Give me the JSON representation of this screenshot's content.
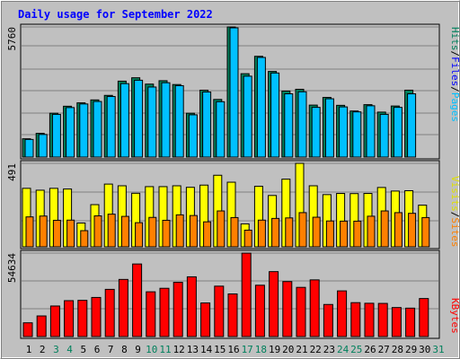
{
  "chart_data": {
    "type": "bar",
    "title": "Daily usage for September 2022",
    "days": [
      "1",
      "2",
      "3",
      "4",
      "5",
      "6",
      "7",
      "8",
      "9",
      "10",
      "11",
      "12",
      "13",
      "14",
      "15",
      "16",
      "17",
      "18",
      "19",
      "20",
      "21",
      "22",
      "23",
      "24",
      "25",
      "26",
      "27",
      "28",
      "29",
      "30",
      "31"
    ],
    "weekend_days": [
      "3",
      "4",
      "10",
      "11",
      "17",
      "18",
      "24",
      "25",
      "31"
    ],
    "panels": [
      {
        "id": "hits",
        "max_label": "5760",
        "ymax": 5760,
        "legend": [
          "Pages",
          "Files",
          "Hits"
        ],
        "series": [
          {
            "name": "Hits",
            "values": [
              810,
              1050,
              1940,
              2250,
              2400,
              2530,
              2730,
              3360,
              3510,
              3230,
              3380,
              3210,
              1940,
              2960,
              2550,
              5760,
              3690,
              4460,
              3790,
              2920,
              3000,
              2300,
              2640,
              2290,
              2040,
              2320,
              1990,
              2260,
              2960,
              null,
              null
            ]
          },
          {
            "name": "Files",
            "values": [
              780,
              1000,
              1890,
              2190,
              2350,
              2460,
              2680,
              3250,
              3400,
              3100,
              3290,
              3160,
              1870,
              2880,
              2450,
              5720,
              3580,
              4410,
              3720,
              2800,
              2890,
              2200,
              2580,
              2220,
              2000,
              2270,
              1890,
              2200,
              2800,
              null,
              null
            ]
          },
          {
            "name": "Pages",
            "values": [
              null,
              null,
              null,
              null,
              null,
              null,
              null,
              null,
              null,
              null,
              null,
              null,
              null,
              null,
              null,
              null,
              null,
              null,
              null,
              null,
              null,
              null,
              null,
              null,
              null,
              null,
              null,
              null,
              null,
              null,
              null
            ]
          }
        ]
      },
      {
        "id": "visits",
        "max_label": "491",
        "ymax": 491,
        "legend": [
          "Sites",
          "Visits"
        ],
        "series": [
          {
            "name": "Visits",
            "values": [
              344,
              333,
              344,
              340,
              140,
              248,
              369,
              359,
              315,
              354,
              354,
              359,
              350,
              363,
              421,
              380,
              135,
              356,
              302,
              398,
              491,
              359,
              307,
              314,
              313,
              314,
              349,
              328,
              330,
              245,
              null
            ]
          },
          {
            "name": "Sites",
            "values": [
              176,
              181,
              156,
              157,
              95,
              182,
              192,
              179,
              142,
              173,
              156,
              188,
              184,
              147,
              211,
              172,
              98,
              157,
              167,
              170,
              201,
              174,
              152,
              151,
              151,
              180,
              211,
              201,
              197,
              172,
              null
            ]
          }
        ]
      },
      {
        "id": "kbytes",
        "max_label": "54634",
        "ymax": 54634,
        "legend": [
          "KBytes"
        ],
        "series": [
          {
            "name": "KBytes",
            "values": [
              9000,
              13500,
              20000,
              23500,
              23700,
              25600,
              30900,
              37400,
              47500,
              29300,
              31600,
              35500,
              39100,
              22000,
              33000,
              27900,
              54600,
              33600,
              42500,
              36000,
              32200,
              37100,
              21000,
              29900,
              22200,
              21800,
              21700,
              19000,
              18600,
              24900,
              null
            ]
          }
        ]
      }
    ],
    "colors": {
      "hits": "#00805c",
      "files": "#00c0ff",
      "pages": "#00e0ff",
      "visits": "#ffff00",
      "sites": "#ff8000",
      "kbytes": "#ff0000",
      "title": "#0000ff",
      "weekend": "#00805c",
      "weekday": "#000000",
      "panel_bg": "#c0c0c0"
    }
  }
}
